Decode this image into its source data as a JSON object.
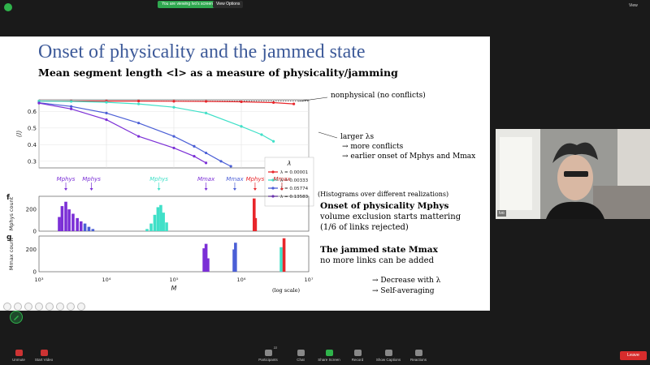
{
  "zoom": {
    "share_banner": "You are viewing Ivo's screen",
    "view_options": "View Options",
    "view_button": "View",
    "participant_name": "Ivo",
    "toolbar": [
      {
        "label": "Unmute",
        "icon": "microphone-off-icon"
      },
      {
        "label": "Start Video",
        "icon": "video-off-icon"
      },
      {
        "label": "Participants",
        "icon": "participants-icon",
        "count": "22"
      },
      {
        "label": "Chat",
        "icon": "chat-icon"
      },
      {
        "label": "Share Screen",
        "icon": "share-screen-icon"
      },
      {
        "label": "Record",
        "icon": "record-icon"
      },
      {
        "label": "Show Captions",
        "icon": "captions-icon"
      },
      {
        "label": "Reactions",
        "icon": "reactions-icon"
      }
    ],
    "leave_label": "Leave"
  },
  "slide": {
    "title": "Onset of physicality and the jammed state",
    "subtitle": "Mean segment length <l> as a measure of physicality/jamming",
    "annotations": {
      "nonphysical": "nonphysical (no conflicts)",
      "larger": "larger λs",
      "more_conflicts": "→ more conflicts",
      "earlier_onset": "→ earlier onset of Mphys and Mmax",
      "histograms": "(Histograms over different realizations)",
      "onset_title": "Onset of physicality Mphys",
      "onset_l1": "volume exclusion starts mattering",
      "onset_l2": "(1/6 of links rejected)",
      "jammed_title": "The jammed state Mmax",
      "jammed_l1": "no more links can be added",
      "log_scale": "(log scale)",
      "bullet1": "→  Decrease with λ",
      "bullet2": "→  Self-averaging"
    },
    "panel_labels": {
      "f": "f",
      "g": "g"
    }
  },
  "chart_data": {
    "type": "line",
    "xscale": "log",
    "xlim": [
      1000,
      10000000
    ],
    "x_tick_labels": [
      "10³",
      "10⁴",
      "10⁵",
      "10⁶",
      "10⁷"
    ],
    "xlabel": "M",
    "top_panel": {
      "ylabel": "⟨l⟩",
      "ylim": [
        0.26,
        0.67
      ],
      "y_ticks": [
        0.3,
        0.4,
        0.5,
        0.6
      ],
      "legend_title": "λ",
      "legend_position": "center-right",
      "series": [
        {
          "name": "λ = 0.00001",
          "color": "#e8262b",
          "x": [
            1000,
            3000,
            10000,
            30000,
            100000,
            300000,
            1000000,
            3000000,
            6000000
          ],
          "y": [
            0.662,
            0.662,
            0.662,
            0.662,
            0.661,
            0.66,
            0.658,
            0.653,
            0.645
          ]
        },
        {
          "name": "λ = 0.00333",
          "color": "#40e0c8",
          "x": [
            1000,
            3000,
            10000,
            30000,
            100000,
            300000,
            1000000,
            2000000,
            3000000
          ],
          "y": [
            0.662,
            0.66,
            0.655,
            0.645,
            0.625,
            0.59,
            0.51,
            0.46,
            0.42
          ]
        },
        {
          "name": "λ = 0.05774",
          "color": "#4b5fd6",
          "x": [
            1000,
            3000,
            10000,
            30000,
            100000,
            200000,
            300000,
            500000,
            700000
          ],
          "y": [
            0.652,
            0.63,
            0.59,
            0.53,
            0.45,
            0.39,
            0.35,
            0.3,
            0.27
          ]
        },
        {
          "name": "λ = 0.13583",
          "color": "#7b2fd6",
          "x": [
            1000,
            3000,
            10000,
            30000,
            100000,
            200000,
            300000
          ],
          "y": [
            0.65,
            0.615,
            0.55,
            0.45,
            0.38,
            0.33,
            0.29
          ]
        }
      ]
    },
    "markers": [
      {
        "label": "Mphys",
        "color": "#7b2fd6",
        "x": 2500
      },
      {
        "label": "Mphys",
        "color": "#7b2fd6",
        "x": 6000
      },
      {
        "label": "Mphys",
        "color": "#40e0c8",
        "x": 60000
      },
      {
        "label": "Mmax",
        "color": "#7b2fd6",
        "x": 300000
      },
      {
        "label": "Mmax",
        "color": "#4b5fd6",
        "x": 800000
      },
      {
        "label": "Mmax",
        "color": "#40e0c8",
        "x": 4000000
      },
      {
        "label": "Mphys",
        "color": "#e8262b",
        "x": 1600000
      },
      {
        "label": "Mmax",
        "color": "#e8262b",
        "x": 4000000
      }
    ],
    "hist_f": {
      "ylabel": "Mphys count",
      "y_ticks": [
        0,
        200
      ],
      "bins": [
        {
          "x": 2000,
          "h": 130,
          "color": "#7b2fd6"
        },
        {
          "x": 2200,
          "h": 230,
          "color": "#7b2fd6"
        },
        {
          "x": 2500,
          "h": 270,
          "color": "#7b2fd6"
        },
        {
          "x": 2800,
          "h": 200,
          "color": "#7b2fd6"
        },
        {
          "x": 3200,
          "h": 160,
          "color": "#7b2fd6"
        },
        {
          "x": 3700,
          "h": 120,
          "color": "#7b2fd6"
        },
        {
          "x": 4200,
          "h": 90,
          "color": "#7b2fd6"
        },
        {
          "x": 4800,
          "h": 70,
          "color": "#4b5fd6"
        },
        {
          "x": 5500,
          "h": 40,
          "color": "#4b5fd6"
        },
        {
          "x": 6300,
          "h": 20,
          "color": "#4b5fd6"
        },
        {
          "x": 40000,
          "h": 20,
          "color": "#40e0c8"
        },
        {
          "x": 46000,
          "h": 70,
          "color": "#40e0c8"
        },
        {
          "x": 52000,
          "h": 150,
          "color": "#40e0c8"
        },
        {
          "x": 58000,
          "h": 220,
          "color": "#40e0c8"
        },
        {
          "x": 64000,
          "h": 240,
          "color": "#40e0c8"
        },
        {
          "x": 70000,
          "h": 170,
          "color": "#40e0c8"
        },
        {
          "x": 78000,
          "h": 80,
          "color": "#40e0c8"
        },
        {
          "x": 1550000,
          "h": 300,
          "color": "#e8262b"
        },
        {
          "x": 1620000,
          "h": 120,
          "color": "#e8262b"
        }
      ]
    },
    "hist_g": {
      "ylabel": "Mmax count",
      "y_ticks": [
        0,
        200
      ],
      "bins": [
        {
          "x": 280000,
          "h": 210,
          "color": "#7b2fd6"
        },
        {
          "x": 300000,
          "h": 250,
          "color": "#7b2fd6"
        },
        {
          "x": 320000,
          "h": 120,
          "color": "#7b2fd6"
        },
        {
          "x": 780000,
          "h": 200,
          "color": "#4b5fd6"
        },
        {
          "x": 820000,
          "h": 260,
          "color": "#4b5fd6"
        },
        {
          "x": 3900000,
          "h": 220,
          "color": "#40e0c8"
        },
        {
          "x": 4300000,
          "h": 300,
          "color": "#e8262b"
        }
      ]
    }
  }
}
